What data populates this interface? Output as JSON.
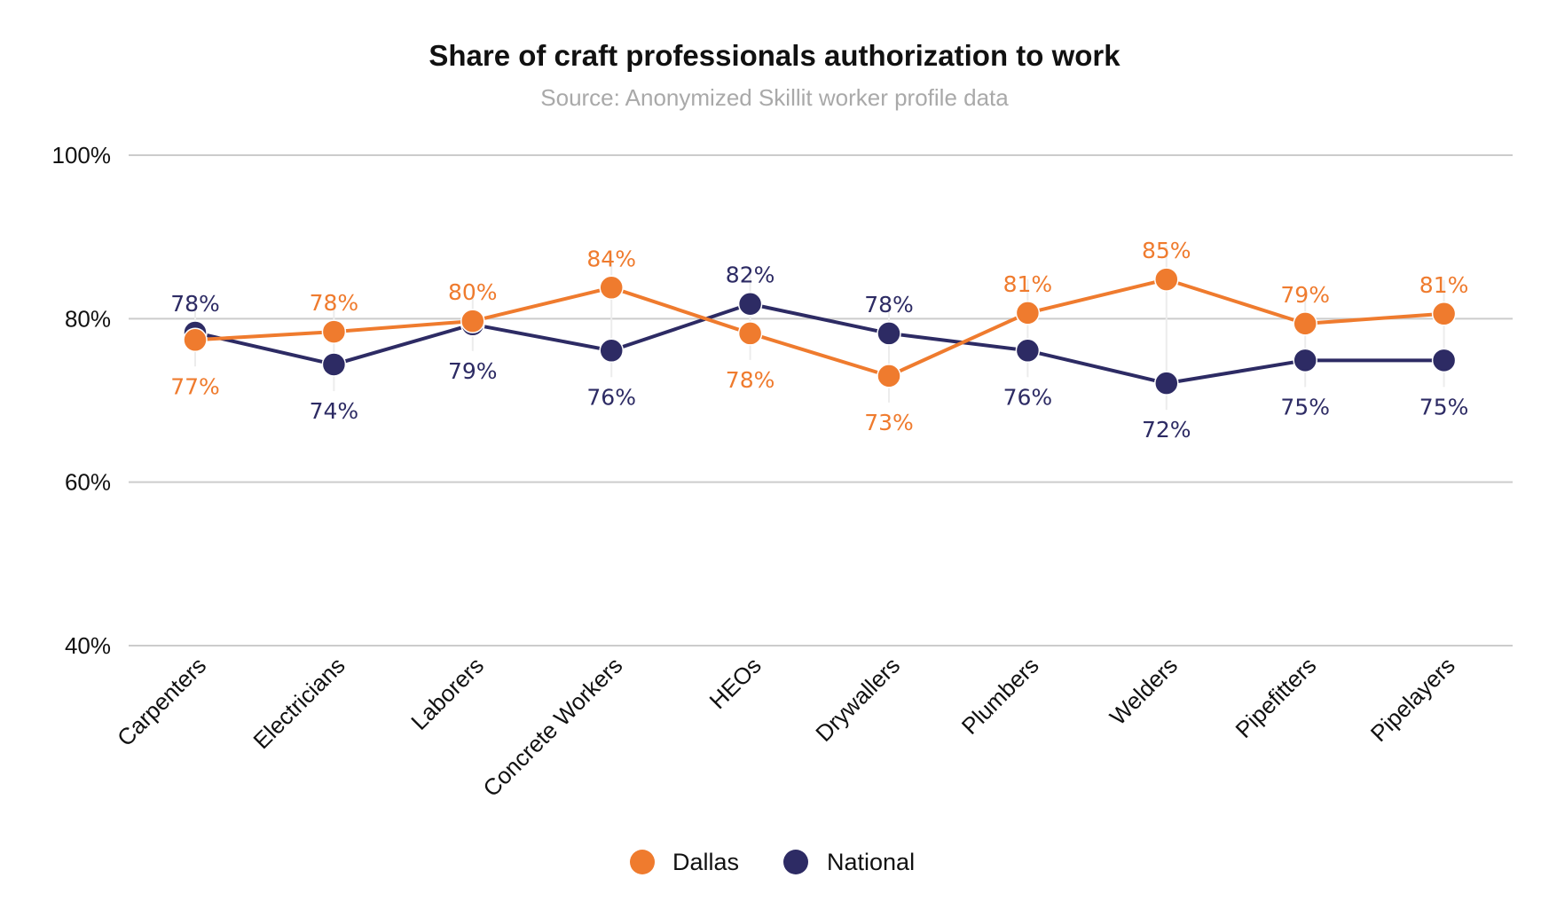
{
  "title": "Share of craft professionals authorization to work",
  "subtitle": "Source: Anonymized Skillit worker profile data",
  "colors": {
    "Dallas": "#ef7b2e",
    "National": "#2d2b64",
    "grid": "#cccccc"
  },
  "chart_data": {
    "type": "line",
    "title": "Share of craft professionals authorization to work",
    "subtitle": "Source: Anonymized Skillit worker profile data",
    "xlabel": "",
    "ylabel": "",
    "ylim": [
      40,
      100
    ],
    "yticks": [
      40,
      60,
      80,
      100
    ],
    "ytick_labels": [
      "40%",
      "60%",
      "80%",
      "100%"
    ],
    "grid": true,
    "legend_position": "bottom-center",
    "categories": [
      "Carpenters",
      "Electricians",
      "Laborers",
      "Concrete Workers",
      "HEOs",
      "Drywallers",
      "Plumbers",
      "Welders",
      "Pipefitters",
      "Pipelayers"
    ],
    "series": [
      {
        "name": "Dallas",
        "values": [
          77.4,
          78.4,
          79.7,
          83.8,
          78.2,
          73.0,
          80.7,
          84.8,
          79.4,
          80.6
        ],
        "labels": [
          "77%",
          "78%",
          "80%",
          "84%",
          "78%",
          "73%",
          "81%",
          "85%",
          "79%",
          "81%"
        ]
      },
      {
        "name": "National",
        "values": [
          78.3,
          74.4,
          79.3,
          76.1,
          81.8,
          78.2,
          76.1,
          72.1,
          74.9,
          74.9
        ],
        "labels": [
          "78%",
          "74%",
          "79%",
          "76%",
          "82%",
          "78%",
          "76%",
          "72%",
          "75%",
          "75%"
        ]
      }
    ]
  }
}
